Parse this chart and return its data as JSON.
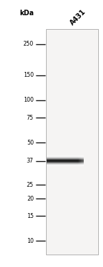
{
  "lane_label": "A431",
  "kda_label": "kDa",
  "marker_labels": [
    "250",
    "150",
    "100",
    "75",
    "50",
    "37",
    "25",
    "20",
    "15",
    "10"
  ],
  "marker_positions": [
    250,
    150,
    100,
    75,
    50,
    37,
    25,
    20,
    15,
    10
  ],
  "band_kda": 37,
  "band_intensity": 0.92,
  "bg_color": "#ffffff",
  "lane_bg_color": "#f5f4f3",
  "marker_line_color": "#111111",
  "band_color": "#1a1a1a",
  "text_color": "#000000",
  "lane_border_color": "#b0b0b0",
  "log_min": 0.845,
  "log_max": 2.51,
  "fig_width": 1.5,
  "fig_height": 3.86,
  "dpi": 100
}
